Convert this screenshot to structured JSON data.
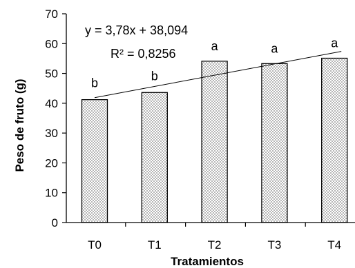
{
  "chart_data": {
    "type": "bar",
    "categories": [
      "T0",
      "T1",
      "T2",
      "T3",
      "T4"
    ],
    "values": [
      41.2,
      43.6,
      54.1,
      53.3,
      55.1
    ],
    "significance_letters": [
      "b",
      "b",
      "a",
      "a",
      "a"
    ],
    "xlabel": "Tratamientos",
    "ylabel": "Peso de fruto (g)",
    "ylim": [
      0,
      70
    ],
    "yticks": [
      "0",
      "10",
      "20",
      "30",
      "40",
      "50",
      "60",
      "70"
    ],
    "grid": false,
    "bar_fill": "dotted",
    "trendline": {
      "type": "linear",
      "slope": 3.78,
      "intercept": 38.094,
      "equation_label": "y = 3,78x + 38,094",
      "r2_label": "R² = 0,8256"
    }
  }
}
